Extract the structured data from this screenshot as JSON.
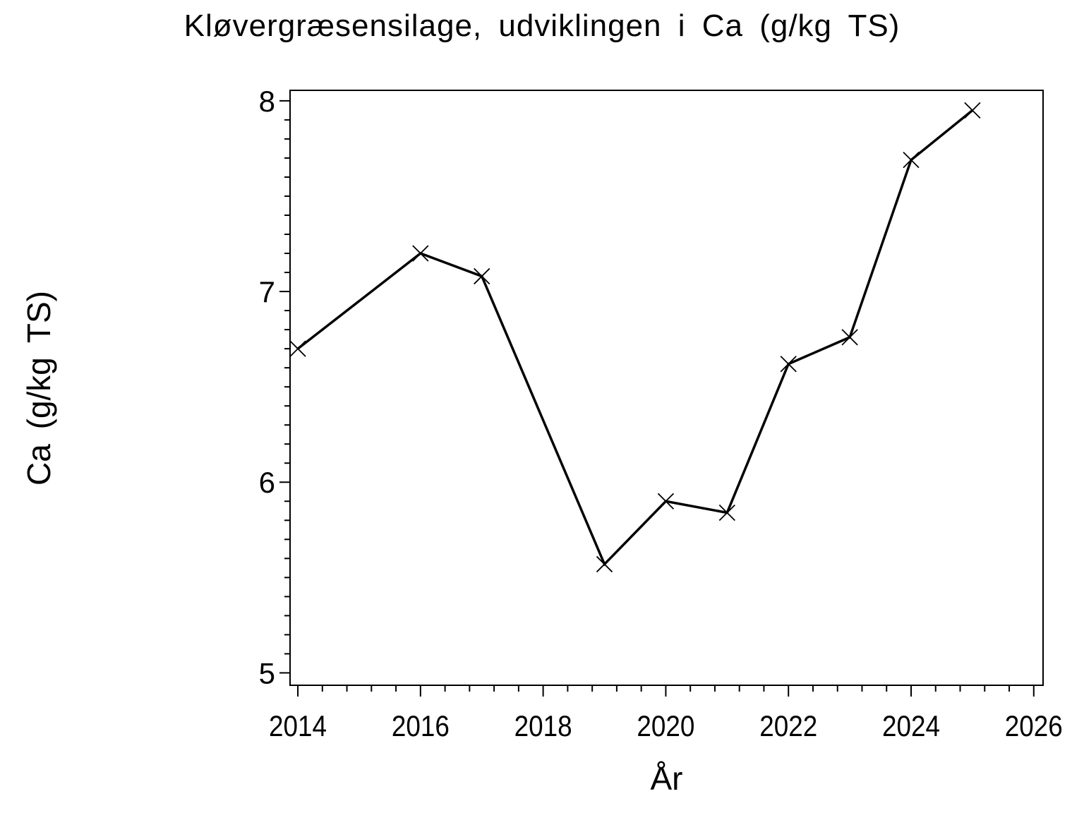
{
  "page": {
    "background_color": "#ffffff",
    "foreground_color": "#000000"
  },
  "chart_data": {
    "type": "line",
    "title": "Kløvergræsensilage, udviklingen i Ca (g/kg TS)",
    "xlabel": "År",
    "ylabel": "Ca (g/kg TS)",
    "series": [
      {
        "name": "Ca (g/kg TS)",
        "x": [
          2014,
          2016,
          2017,
          2019,
          2020,
          2021,
          2022,
          2023,
          2024,
          2025
        ],
        "y": [
          6.7,
          7.2,
          7.08,
          5.57,
          5.9,
          5.84,
          6.62,
          6.76,
          7.69,
          7.95
        ],
        "marker": "x",
        "color": "#000000"
      }
    ],
    "xlim": [
      2013.873,
      2026.152
    ],
    "ylim": [
      4.935,
      8.055
    ],
    "x_ticks": [
      2014,
      2016,
      2018,
      2020,
      2022,
      2024,
      2026
    ],
    "y_ticks": [
      5,
      6,
      7,
      8
    ],
    "x_minor_tick_step": 0.4,
    "y_minor_tick_step": 0.1,
    "grid": false,
    "legend": false
  }
}
